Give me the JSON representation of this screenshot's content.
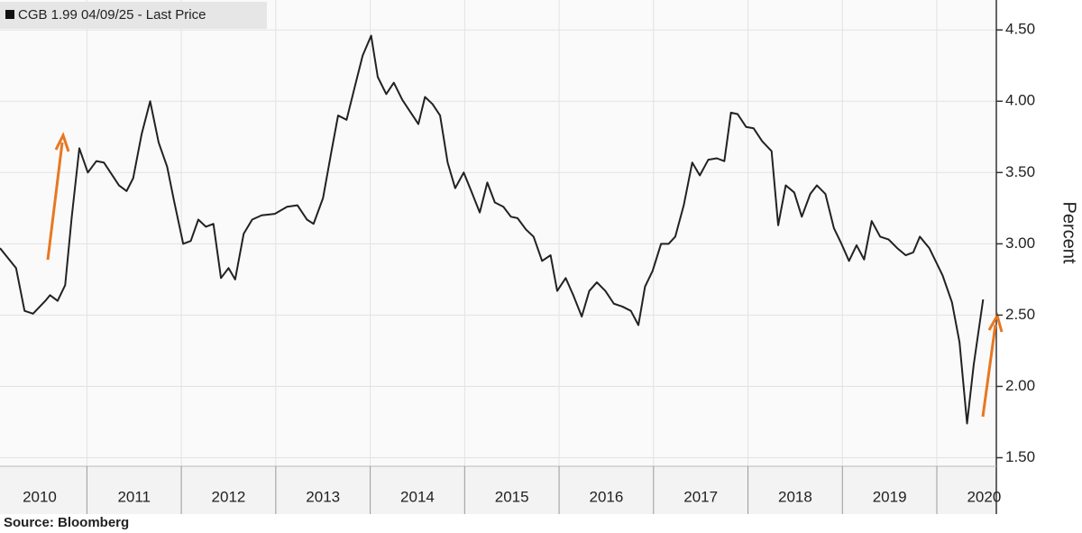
{
  "chart_data": {
    "type": "line",
    "ylabel": "Percent",
    "source": "Source: Bloomberg",
    "grid": true,
    "xlim": [
      2010.08,
      2020.63
    ],
    "ylim": [
      1.44,
      4.71
    ],
    "xticks": [
      {
        "value": 2010.5,
        "label": "2010"
      },
      {
        "value": 2011.5,
        "label": "2011"
      },
      {
        "value": 2012.5,
        "label": "2012"
      },
      {
        "value": 2013.5,
        "label": "2013"
      },
      {
        "value": 2014.5,
        "label": "2014"
      },
      {
        "value": 2015.5,
        "label": "2015"
      },
      {
        "value": 2016.5,
        "label": "2016"
      },
      {
        "value": 2017.5,
        "label": "2017"
      },
      {
        "value": 2018.5,
        "label": "2018"
      },
      {
        "value": 2019.5,
        "label": "2019"
      },
      {
        "value": 2020.5,
        "label": "2020"
      }
    ],
    "yticks": [
      {
        "value": 1.5,
        "label": "1.50"
      },
      {
        "value": 2,
        "label": "2.00"
      },
      {
        "value": 2.5,
        "label": "2.50"
      },
      {
        "value": 3,
        "label": "3.00"
      },
      {
        "value": 3.5,
        "label": "3.50"
      },
      {
        "value": 4,
        "label": "4.00"
      },
      {
        "value": 4.5,
        "label": "4.50"
      }
    ],
    "x": [
      2010.08,
      2010.25,
      2010.34,
      2010.43,
      2010.56,
      2010.61,
      2010.69,
      2010.77,
      2010.84,
      2010.92,
      2011.01,
      2011.1,
      2011.18,
      2011.25,
      2011.34,
      2011.42,
      2011.49,
      2011.58,
      2011.67,
      2011.76,
      2011.85,
      2011.92,
      2012.02,
      2012.1,
      2012.18,
      2012.26,
      2012.34,
      2012.42,
      2012.5,
      2012.57,
      2012.66,
      2012.75,
      2012.85,
      2012.99,
      2013.12,
      2013.23,
      2013.33,
      2013.4,
      2013.5,
      2013.59,
      2013.66,
      2013.75,
      2013.84,
      2013.92,
      2014.01,
      2014.08,
      2014.17,
      2014.25,
      2014.34,
      2014.43,
      2014.51,
      2014.58,
      2014.66,
      2014.74,
      2014.82,
      2014.9,
      2014.99,
      2015.07,
      2015.16,
      2015.24,
      2015.32,
      2015.41,
      2015.49,
      2015.56,
      2015.65,
      2015.73,
      2015.82,
      2015.91,
      2015.98,
      2016.07,
      2016.15,
      2016.24,
      2016.32,
      2016.4,
      2016.49,
      2016.58,
      2016.67,
      2016.76,
      2016.84,
      2016.91,
      2016.99,
      2017.08,
      2017.16,
      2017.23,
      2017.32,
      2017.41,
      2017.49,
      2017.58,
      2017.67,
      2017.75,
      2017.82,
      2017.89,
      2017.98,
      2018.06,
      2018.15,
      2018.25,
      2018.32,
      2018.4,
      2018.49,
      2018.57,
      2018.66,
      2018.73,
      2018.82,
      2018.91,
      2018.99,
      2019.07,
      2019.15,
      2019.23,
      2019.31,
      2019.4,
      2019.49,
      2019.58,
      2019.67,
      2019.75,
      2019.82,
      2019.92,
      2020.06,
      2020.16,
      2020.24,
      2020.32,
      2020.39,
      2020.49
    ],
    "series": [
      {
        "name": "CGB 1.99 04/09/25 - Last Price",
        "color": "#222222",
        "values": [
          2.97,
          2.83,
          2.53,
          2.51,
          2.6,
          2.64,
          2.6,
          2.71,
          3.19,
          3.67,
          3.5,
          3.58,
          3.57,
          3.5,
          3.41,
          3.37,
          3.46,
          3.77,
          4.0,
          3.71,
          3.54,
          3.31,
          3.0,
          3.02,
          3.17,
          3.12,
          3.14,
          2.76,
          2.83,
          2.75,
          3.07,
          3.17,
          3.2,
          3.21,
          3.26,
          3.27,
          3.17,
          3.14,
          3.32,
          3.65,
          3.9,
          3.87,
          4.11,
          4.32,
          4.46,
          4.17,
          4.05,
          4.13,
          4.01,
          3.92,
          3.84,
          4.03,
          3.98,
          3.9,
          3.57,
          3.39,
          3.5,
          3.37,
          3.22,
          3.43,
          3.29,
          3.26,
          3.19,
          3.18,
          3.1,
          3.05,
          2.88,
          2.92,
          2.67,
          2.76,
          2.64,
          2.49,
          2.67,
          2.73,
          2.67,
          2.58,
          2.56,
          2.53,
          2.43,
          2.7,
          2.81,
          3.0,
          3.0,
          3.05,
          3.27,
          3.57,
          3.48,
          3.59,
          3.6,
          3.58,
          3.92,
          3.91,
          3.82,
          3.81,
          3.72,
          3.65,
          3.13,
          3.41,
          3.36,
          3.19,
          3.35,
          3.41,
          3.35,
          3.11,
          3.0,
          2.88,
          2.99,
          2.89,
          3.16,
          3.05,
          3.03,
          2.97,
          2.92,
          2.94,
          3.05,
          2.97,
          2.78,
          2.59,
          2.31,
          1.74,
          2.15,
          2.61
        ]
      }
    ]
  }
}
